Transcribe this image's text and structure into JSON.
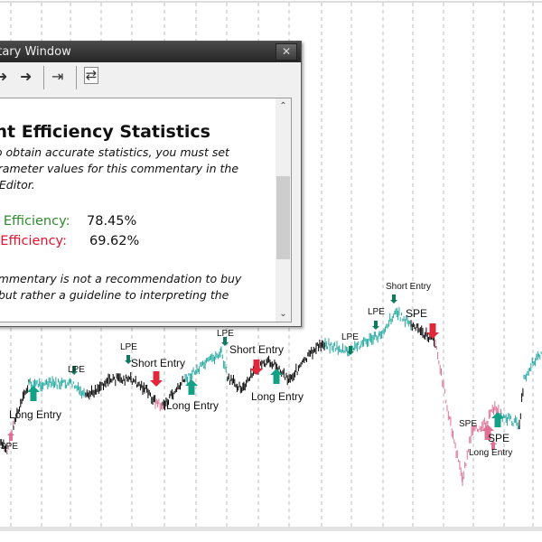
{
  "window": {
    "title": "Commentary Window",
    "title_visible": "ntary Window",
    "close_label": "✕",
    "toolbar": {
      "back_icon": "arrow-left-icon",
      "forward_icon": "arrow-right-icon",
      "end_icon": "arrow-end-icon",
      "refresh_icon": "refresh-document-icon"
    },
    "content": {
      "heading": "ant Efficiency Statistics",
      "note_lines": [
        "to obtain accurate statistics, you must set",
        "arameter values for this commentary in the",
        "t Editor."
      ],
      "long_label": "g Efficiency:",
      "long_value": "78.45%",
      "short_label": "t Efficiency:",
      "short_value": "69.62%",
      "disclaimer_lines": [
        "ommentary is not a recommendation to buy",
        ", but rather a guideline to interpreting the"
      ]
    },
    "colors": {
      "long": "#2e8b2e",
      "short": "#e8112d"
    }
  },
  "chart": {
    "colors": {
      "neutral": "#000000",
      "long": "#20a8a0",
      "short": "#e07095",
      "long_arrow": "#14a085",
      "short_arrow": "#e0283c",
      "lpe_arrow": "#107a60"
    },
    "annotations": [
      {
        "text": "Long Entry",
        "type": "long"
      },
      {
        "text": "LPE",
        "type": "lpe"
      },
      {
        "text": "LPE",
        "type": "lpe"
      },
      {
        "text": "Short Entry",
        "type": "short"
      },
      {
        "text": "Long Entry",
        "type": "long"
      },
      {
        "text": "LPE",
        "type": "lpe"
      },
      {
        "text": "Short Entry",
        "type": "short"
      },
      {
        "text": "Long Entry",
        "type": "long"
      },
      {
        "text": "LPE",
        "type": "lpe"
      },
      {
        "text": "LPE",
        "type": "lpe"
      },
      {
        "text": "Short Entry",
        "type": "short"
      },
      {
        "text": "SPE",
        "type": "spe"
      },
      {
        "text": "SPE",
        "type": "spe"
      },
      {
        "text": "SPE",
        "type": "spe"
      },
      {
        "text": "Long Entry",
        "type": "long"
      },
      {
        "text": "SPE",
        "type": "spe"
      }
    ]
  }
}
